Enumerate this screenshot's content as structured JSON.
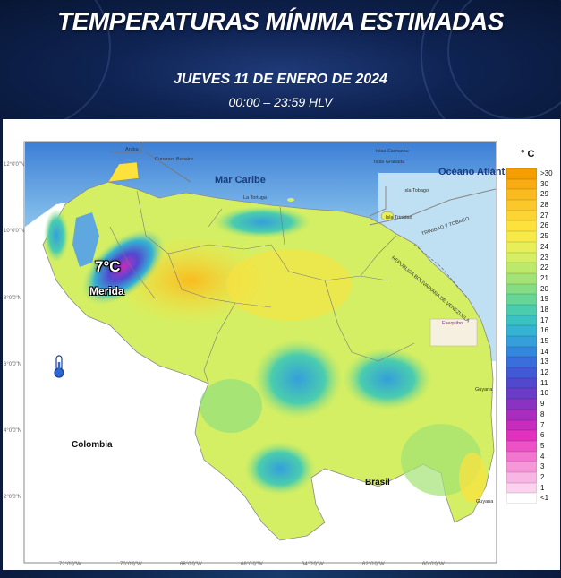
{
  "header": {
    "title": "TEMPERATURAS MÍNIMA ESTIMADAS",
    "date": "JUEVES 11 DE ENERO DE 2024",
    "time_range": "00:00 – 23:59 HLV"
  },
  "map": {
    "labels": {
      "sea": "Mar Caribe",
      "ocean": "Océano Atlántico",
      "colombia": "Colombia",
      "brasil": "Brasil",
      "guyana_1": "Guyana",
      "guyana_2": "Guyana",
      "trinidad": "TRINIDAD Y TOBAGO",
      "venezuela_border": "REPÚBLICA BOLIVARIANA DE VENEZUELA",
      "aruba": "Aruba",
      "curazao": "Curazao",
      "bonaire": "Bonaire",
      "carriacou": "Islas Carriacou",
      "granada": "Islas Granada",
      "tobago": "Isla Tobago",
      "isla_trinidad": "Isla Trinidad",
      "la_tortuga": "La Tortuga",
      "esequibo_title": "Esequibo"
    },
    "highlight": {
      "city": "Merida",
      "temperature": "7°C",
      "icon": "thermometer-icon"
    },
    "lon_ticks": [
      "72°0'0\"W",
      "70°0'0\"W",
      "68°0'0\"W",
      "66°0'0\"W",
      "64°0'0\"W",
      "62°0'0\"W",
      "60°0'0\"W"
    ],
    "lat_ticks": [
      "12°0'0\"N",
      "10°0'0\"N",
      "8°0'0\"N",
      "6°0'0\"N",
      "4°0'0\"N",
      "2°0'0\"N"
    ]
  },
  "legend": {
    "unit": "° C",
    "items": [
      {
        "label": ">30",
        "color": "#f59e00"
      },
      {
        "label": "30",
        "color": "#f8ac12"
      },
      {
        "label": "29",
        "color": "#f9bb1e"
      },
      {
        "label": "28",
        "color": "#fbc82b"
      },
      {
        "label": "27",
        "color": "#fcd533"
      },
      {
        "label": "26",
        "color": "#fde23c"
      },
      {
        "label": "25",
        "color": "#f7ea48"
      },
      {
        "label": "24",
        "color": "#e8ee58"
      },
      {
        "label": "23",
        "color": "#d4ef63"
      },
      {
        "label": "22",
        "color": "#bde96a"
      },
      {
        "label": "21",
        "color": "#a3e274"
      },
      {
        "label": "20",
        "color": "#85dc82"
      },
      {
        "label": "19",
        "color": "#66d596"
      },
      {
        "label": "18",
        "color": "#4bcdad"
      },
      {
        "label": "17",
        "color": "#3ac2c2"
      },
      {
        "label": "16",
        "color": "#34b3d2"
      },
      {
        "label": "15",
        "color": "#349fdb"
      },
      {
        "label": "14",
        "color": "#3587de"
      },
      {
        "label": "13",
        "color": "#386fdc"
      },
      {
        "label": "12",
        "color": "#4259d6"
      },
      {
        "label": "11",
        "color": "#5248cf"
      },
      {
        "label": "10",
        "color": "#6a3cc8"
      },
      {
        "label": "9",
        "color": "#8a32c2"
      },
      {
        "label": "8",
        "color": "#aa2dbf"
      },
      {
        "label": "7",
        "color": "#c82cbe"
      },
      {
        "label": "6",
        "color": "#e032bf"
      },
      {
        "label": "5",
        "color": "#ec52c6"
      },
      {
        "label": "4",
        "color": "#f276cf"
      },
      {
        "label": "3",
        "color": "#f597d9"
      },
      {
        "label": "2",
        "color": "#f8b6e4"
      },
      {
        "label": "1",
        "color": "#fbd3ee"
      },
      {
        "label": "<1",
        "color": "#ffffff"
      }
    ]
  }
}
